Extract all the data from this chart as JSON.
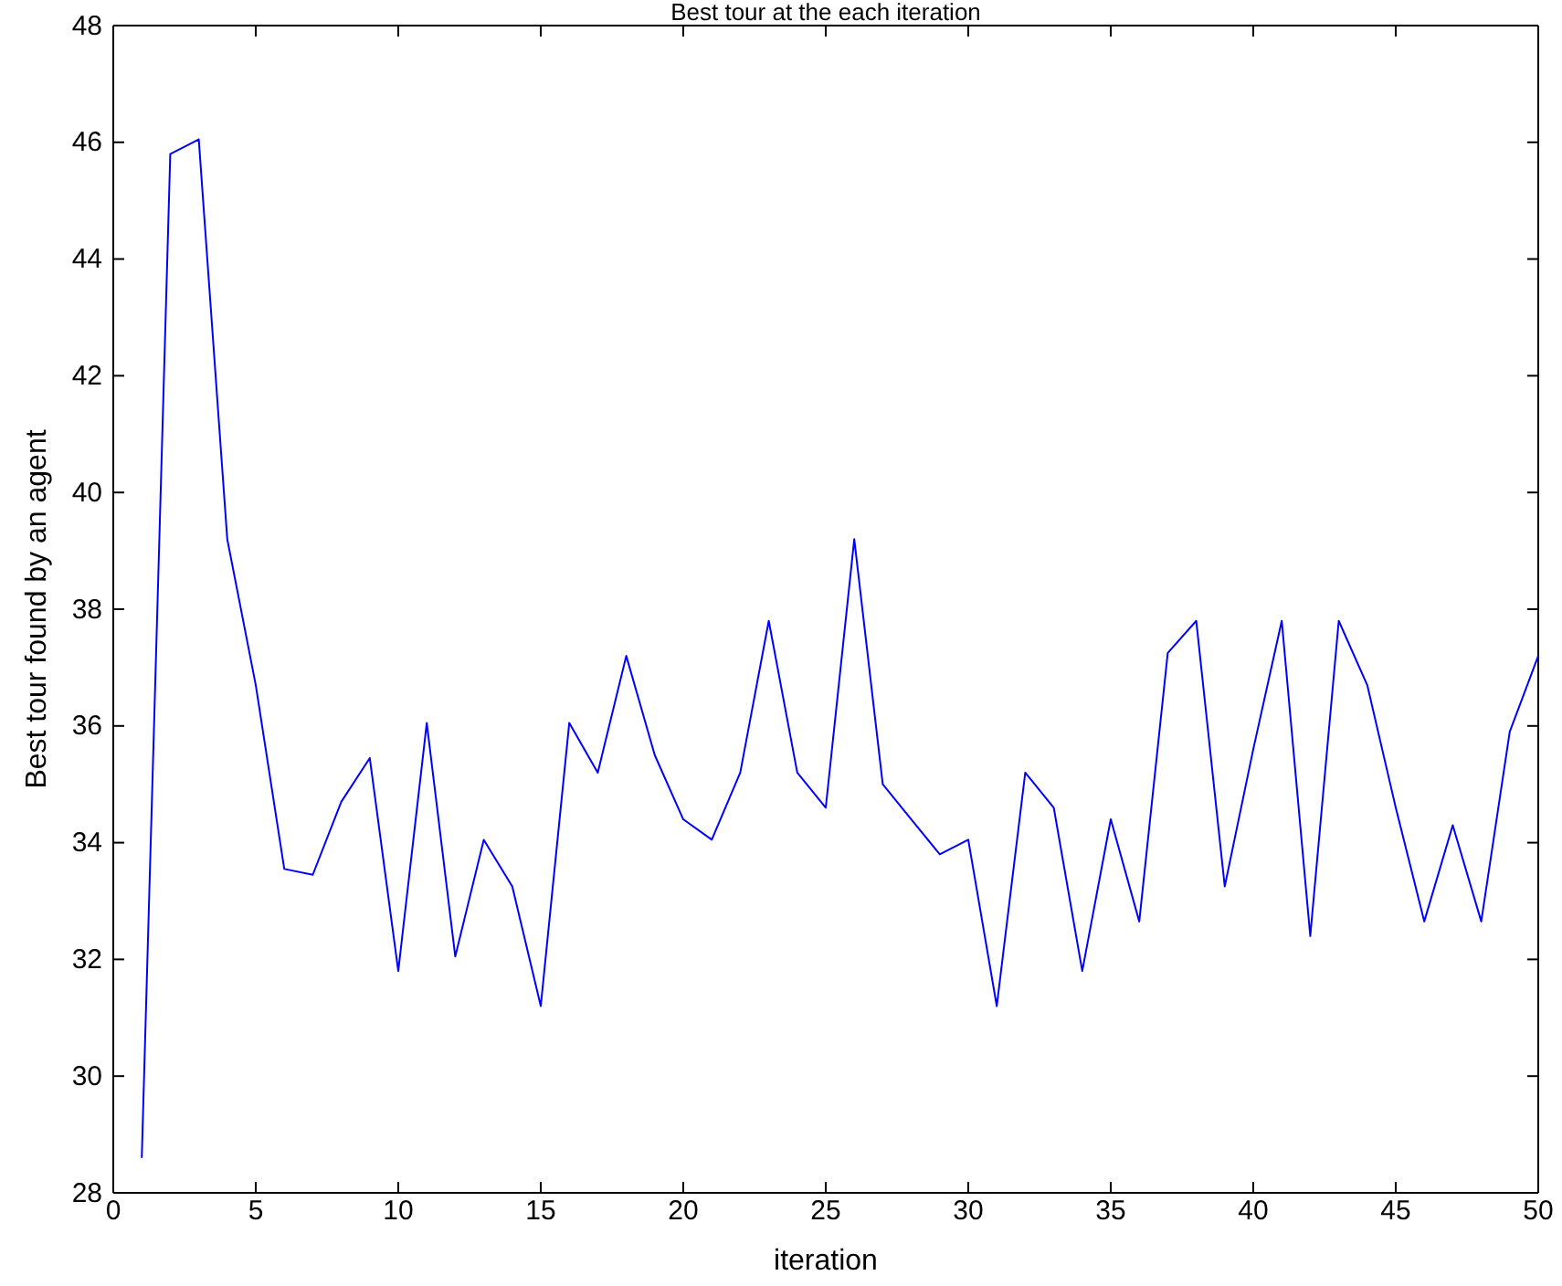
{
  "chart_data": {
    "type": "line",
    "title": "Best tour at the each iteration",
    "xlabel": "iteration",
    "ylabel": "Best tour found by an agent",
    "x": [
      1,
      2,
      3,
      4,
      5,
      6,
      7,
      8,
      9,
      10,
      11,
      12,
      13,
      14,
      15,
      16,
      17,
      18,
      19,
      20,
      21,
      22,
      23,
      24,
      25,
      26,
      27,
      28,
      29,
      30,
      31,
      32,
      33,
      34,
      35,
      36,
      37,
      38,
      39,
      40,
      41,
      42,
      43,
      44,
      45,
      46,
      47,
      48,
      49,
      50
    ],
    "series": [
      {
        "color": "#0000ff",
        "values": [
          28.6,
          45.8,
          46.05,
          39.2,
          36.7,
          33.55,
          33.45,
          34.7,
          35.45,
          31.8,
          36.05,
          32.05,
          34.05,
          33.25,
          31.2,
          36.05,
          35.2,
          37.2,
          35.5,
          34.4,
          34.05,
          35.2,
          37.8,
          35.2,
          34.6,
          39.2,
          35.0,
          34.4,
          33.8,
          34.05,
          31.2,
          35.2,
          34.6,
          31.8,
          34.4,
          32.65,
          37.25,
          37.8,
          33.25,
          35.6,
          37.8,
          32.4,
          37.8,
          36.7,
          34.6,
          32.65,
          34.3,
          32.65,
          35.9,
          37.2
        ]
      }
    ],
    "xlim": [
      0,
      50
    ],
    "xticks": [
      0,
      5,
      10,
      15,
      20,
      25,
      30,
      35,
      40,
      45,
      50
    ],
    "ylim": [
      28,
      48
    ],
    "yticks": [
      28,
      30,
      32,
      34,
      36,
      38,
      40,
      42,
      44,
      46,
      48
    ],
    "grid": false,
    "marker": "none",
    "line_style": "solid"
  }
}
